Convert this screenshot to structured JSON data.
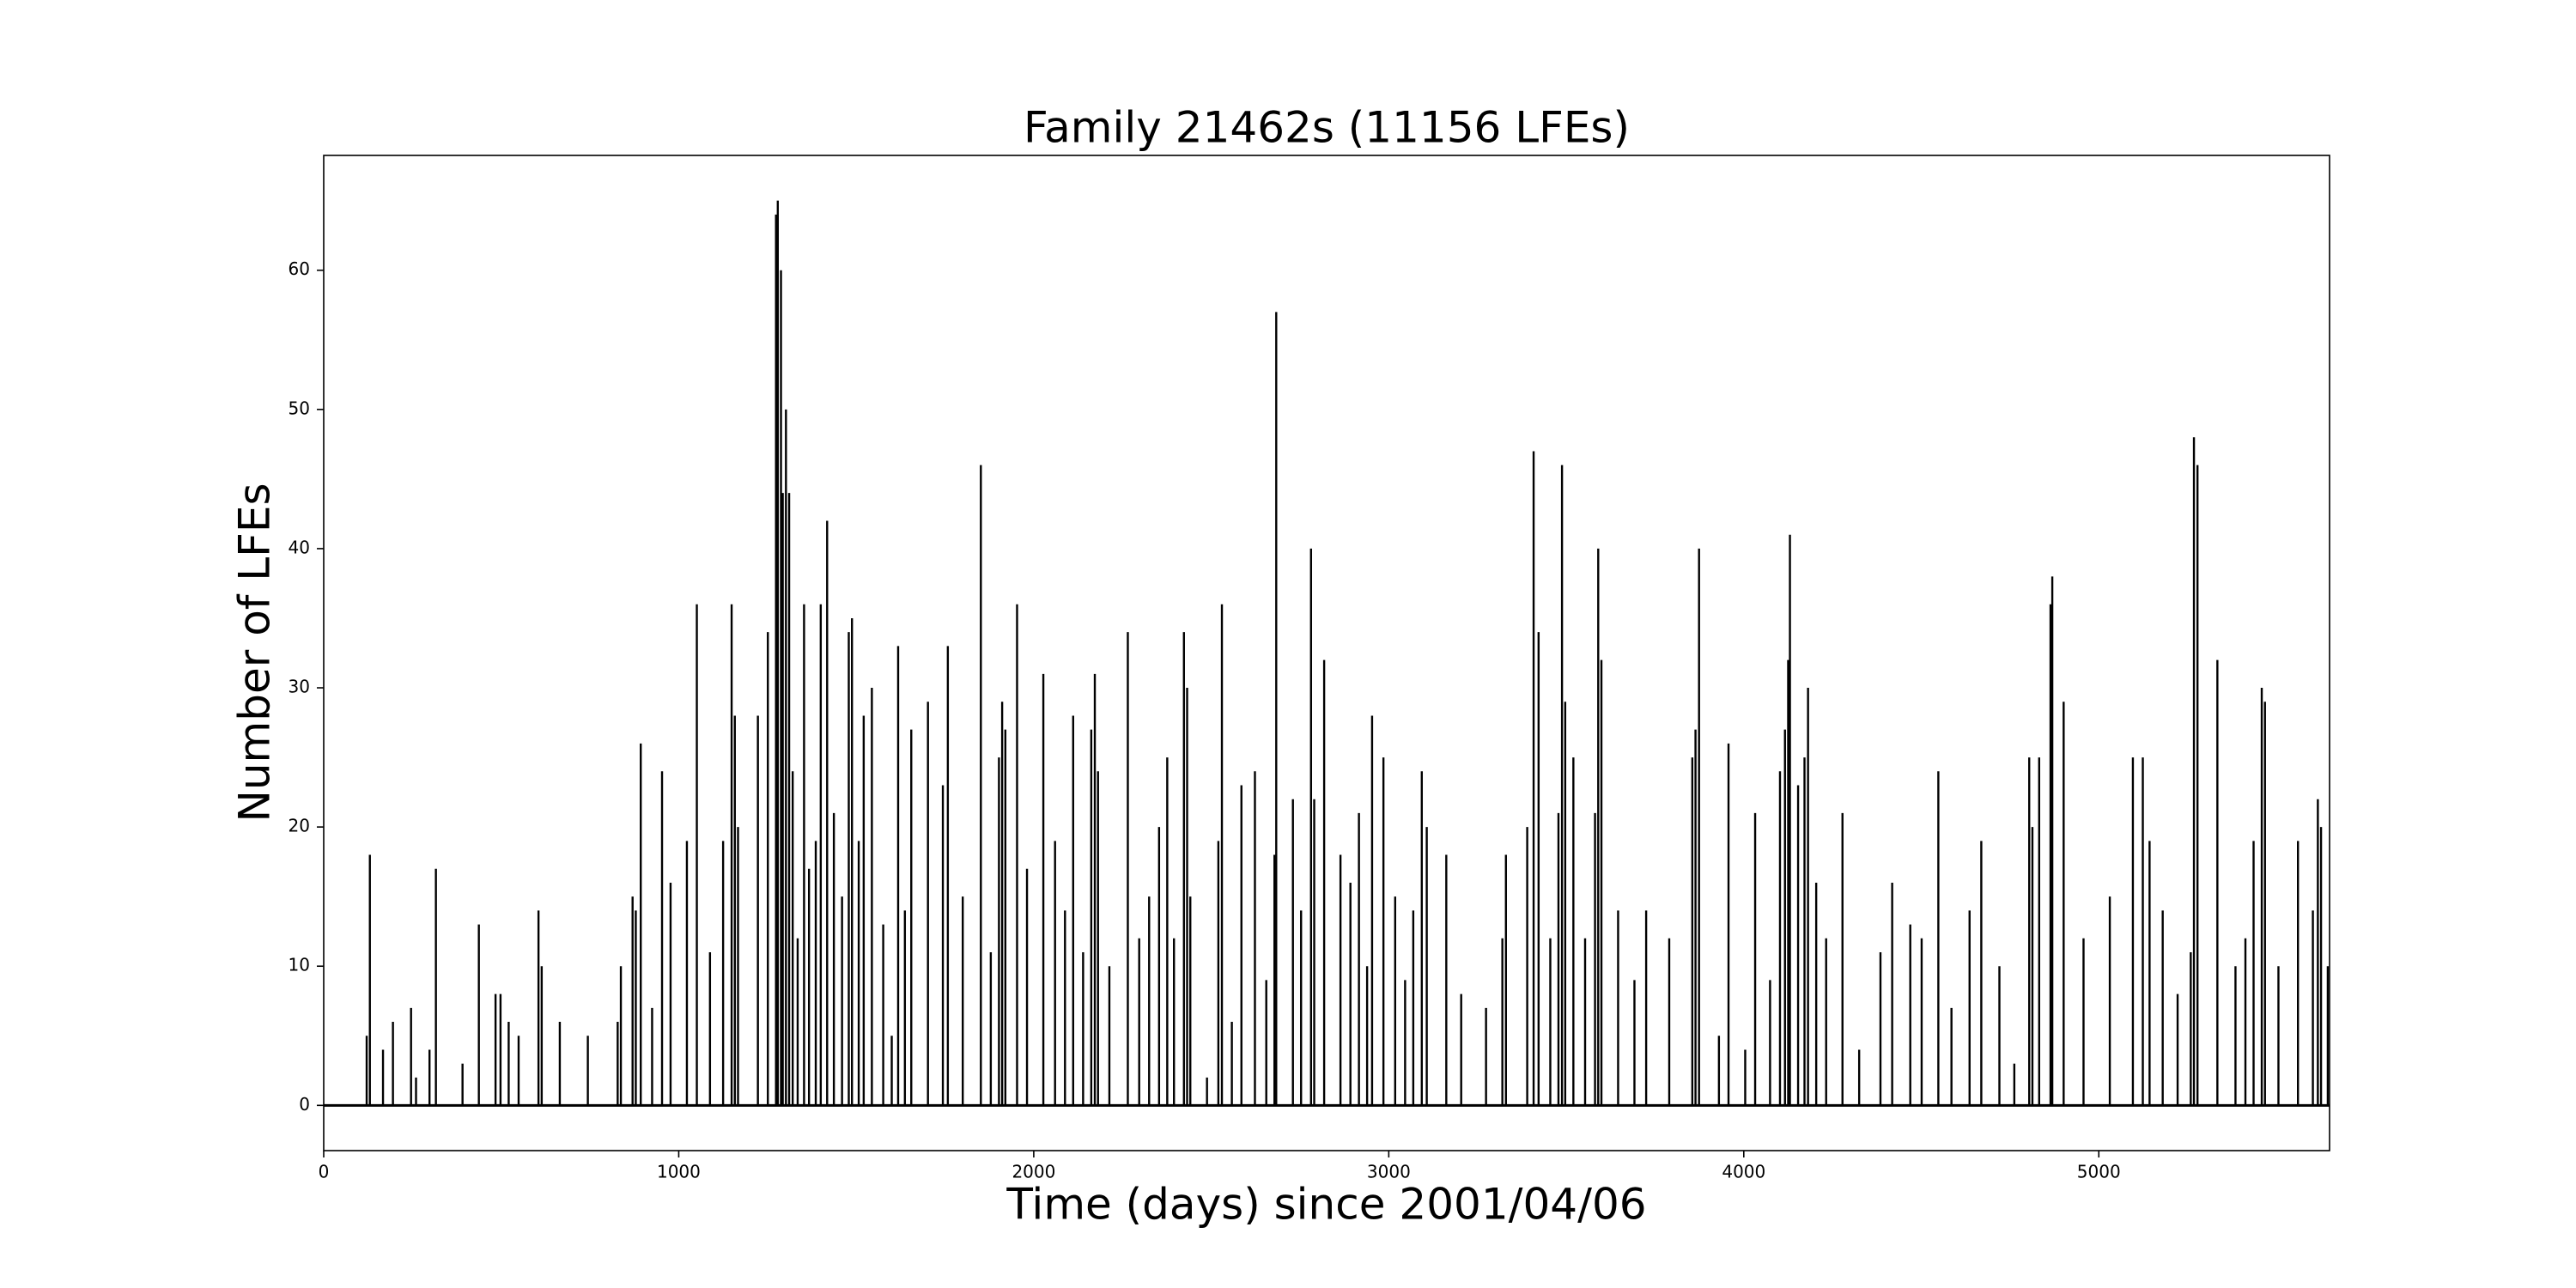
{
  "chart_data": {
    "type": "stem",
    "title": "Family 21462s (11156 LFEs)",
    "xlabel": "Time (days) since 2001/04/06",
    "ylabel": "Number of LFEs",
    "color": "#000000",
    "xlim": [
      0,
      5650
    ],
    "ylim": [
      -3.25,
      68.25
    ],
    "xticks": [
      0,
      1000,
      2000,
      3000,
      4000,
      5000
    ],
    "yticks": [
      0,
      10,
      20,
      30,
      40,
      50,
      60
    ],
    "grid": false,
    "x": [
      121,
      130,
      167,
      195,
      246,
      260,
      298,
      316,
      391,
      437,
      484,
      498,
      521,
      549,
      605,
      614,
      665,
      744,
      828,
      837,
      870,
      879,
      893,
      925,
      953,
      977,
      1023,
      1051,
      1088,
      1125,
      1149,
      1158,
      1167,
      1223,
      1251,
      1274,
      1279,
      1288,
      1293,
      1302,
      1311,
      1321,
      1335,
      1353,
      1367,
      1386,
      1400,
      1418,
      1437,
      1460,
      1479,
      1488,
      1507,
      1521,
      1544,
      1576,
      1600,
      1618,
      1637,
      1655,
      1702,
      1744,
      1758,
      1800,
      1851,
      1879,
      1902,
      1911,
      1920,
      1953,
      1981,
      2027,
      2060,
      2088,
      2111,
      2139,
      2162,
      2172,
      2181,
      2213,
      2265,
      2297,
      2325,
      2353,
      2376,
      2395,
      2423,
      2432,
      2441,
      2488,
      2520,
      2530,
      2558,
      2585,
      2623,
      2655,
      2678,
      2683,
      2730,
      2753,
      2781,
      2790,
      2818,
      2864,
      2892,
      2916,
      2939,
      2953,
      2985,
      3018,
      3046,
      3069,
      3093,
      3107,
      3162,
      3204,
      3274,
      3320,
      3330,
      3390,
      3408,
      3422,
      3455,
      3478,
      3488,
      3497,
      3520,
      3553,
      3581,
      3590,
      3599,
      3646,
      3692,
      3725,
      3790,
      3855,
      3864,
      3874,
      3930,
      3957,
      4004,
      4032,
      4074,
      4102,
      4116,
      4125,
      4130,
      4153,
      4171,
      4181,
      4204,
      4232,
      4278,
      4325,
      4385,
      4418,
      4469,
      4501,
      4548,
      4585,
      4636,
      4669,
      4720,
      4762,
      4804,
      4813,
      4832,
      4864,
      4869,
      4901,
      4957,
      5031,
      5096,
      5124,
      5143,
      5180,
      5222,
      5259,
      5268,
      5278,
      5334,
      5385,
      5413,
      5436,
      5459,
      5468,
      5506,
      5561,
      5603,
      5617,
      5626,
      5645
    ],
    "values": [
      5,
      18,
      4,
      6,
      7,
      2,
      4,
      17,
      3,
      13,
      8,
      8,
      6,
      5,
      14,
      10,
      6,
      5,
      6,
      10,
      15,
      14,
      26,
      7,
      24,
      16,
      19,
      36,
      11,
      19,
      36,
      28,
      20,
      28,
      34,
      64,
      65,
      60,
      44,
      50,
      44,
      24,
      12,
      36,
      17,
      19,
      36,
      42,
      21,
      15,
      34,
      35,
      19,
      28,
      30,
      13,
      5,
      33,
      14,
      27,
      29,
      23,
      33,
      15,
      46,
      11,
      25,
      29,
      27,
      36,
      17,
      31,
      19,
      14,
      28,
      11,
      27,
      31,
      24,
      10,
      34,
      12,
      15,
      20,
      25,
      12,
      34,
      30,
      15,
      2,
      19,
      36,
      6,
      23,
      24,
      9,
      18,
      57,
      22,
      14,
      40,
      22,
      32,
      18,
      16,
      21,
      10,
      28,
      25,
      15,
      9,
      14,
      24,
      20,
      18,
      8,
      7,
      12,
      18,
      20,
      47,
      34,
      12,
      21,
      46,
      29,
      25,
      12,
      21,
      40,
      32,
      14,
      9,
      14,
      12,
      25,
      27,
      40,
      5,
      26,
      4,
      21,
      9,
      24,
      27,
      32,
      41,
      23,
      25,
      30,
      16,
      12,
      21,
      4,
      11,
      16,
      13,
      12,
      24,
      7,
      14,
      19,
      10,
      3,
      25,
      20,
      25,
      36,
      38,
      29,
      12,
      15,
      25,
      25,
      19,
      14,
      8,
      11,
      48,
      46,
      32,
      10,
      12,
      19,
      30,
      29,
      10,
      19,
      14,
      22,
      20,
      10
    ]
  }
}
